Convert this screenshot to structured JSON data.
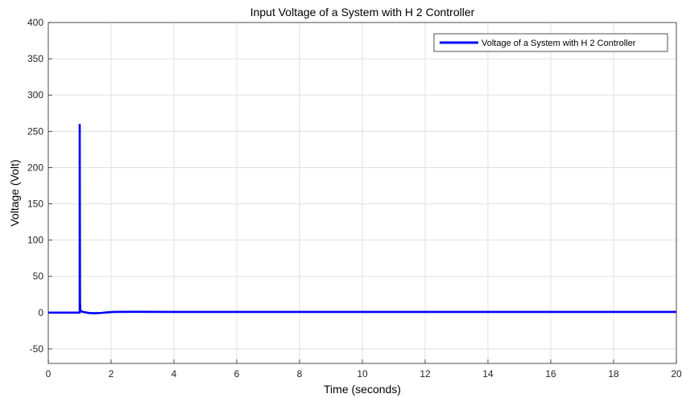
{
  "chart_data": {
    "type": "line",
    "title": "Input Voltage of a System with H 2 Controller",
    "xlabel": "Time (seconds)",
    "ylabel": "Voltage (Volt)",
    "xlim": [
      0,
      20
    ],
    "ylim": [
      -70,
      400
    ],
    "x_ticks": [
      0,
      2,
      4,
      6,
      8,
      10,
      12,
      14,
      16,
      18,
      20
    ],
    "x_tick_labels": [
      "0",
      "2",
      "4",
      "6",
      "8",
      "10",
      "12",
      "14",
      "16",
      "18",
      "20"
    ],
    "y_ticks": [
      -50,
      0,
      50,
      100,
      150,
      200,
      250,
      300,
      350,
      400
    ],
    "y_tick_labels": [
      "-50",
      "0",
      "50",
      "100",
      "150",
      "200",
      "250",
      "300",
      "350",
      "400"
    ],
    "grid": true,
    "legend_position": "top-right",
    "series": [
      {
        "name": "Voltage of a System with H 2 Controller",
        "color": "#0000ff",
        "x": [
          0,
          0.99,
          1.0,
          1.0,
          1.01,
          1.02,
          1.1,
          1.3,
          1.5,
          1.7,
          1.9,
          2.1,
          2.5,
          3,
          4,
          6,
          8,
          10,
          12,
          14,
          16,
          18,
          20
        ],
        "y": [
          0,
          0,
          0,
          259,
          15,
          3,
          1,
          -0.5,
          -0.8,
          -0.3,
          0.5,
          1,
          1.2,
          1.1,
          1.0,
          1.0,
          1.0,
          1.0,
          1.0,
          1.0,
          1.0,
          1.0,
          1.0
        ]
      }
    ]
  }
}
